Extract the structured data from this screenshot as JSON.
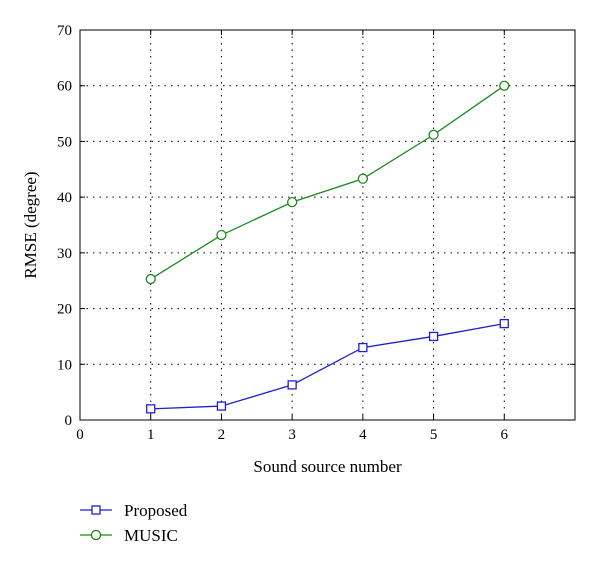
{
  "chart_data": {
    "type": "line",
    "title": "",
    "xlabel": "Sound source number",
    "ylabel": "RMSE (degree)",
    "xlim": [
      0,
      7
    ],
    "ylim": [
      0,
      70
    ],
    "x_ticks": [
      0,
      1,
      2,
      3,
      4,
      5,
      6
    ],
    "y_ticks": [
      0,
      10,
      20,
      30,
      40,
      50,
      60,
      70
    ],
    "grid": true,
    "legend_position": "bottom-left, below plot",
    "series": [
      {
        "name": "Proposed",
        "color": "#1f1fd0",
        "marker": "square",
        "x": [
          1,
          2,
          3,
          4,
          5,
          6
        ],
        "values": [
          2.0,
          2.5,
          6.3,
          13.0,
          15.0,
          17.3
        ]
      },
      {
        "name": "MUSIC",
        "color": "#1a8a1a",
        "marker": "circle",
        "x": [
          1,
          2,
          3,
          4,
          5,
          6
        ],
        "values": [
          25.3,
          33.2,
          39.1,
          43.3,
          51.2,
          60.0
        ]
      }
    ]
  }
}
